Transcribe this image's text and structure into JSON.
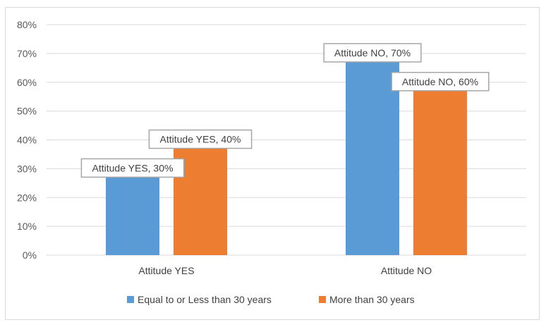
{
  "chart_data": {
    "type": "bar",
    "title": "",
    "xlabel": "",
    "ylabel": "",
    "categories": [
      "Attitude YES",
      "Attitude NO"
    ],
    "series": [
      {
        "name": "Equal to or Less than 30 years",
        "color": "#5b9bd5",
        "values": [
          30,
          70
        ],
        "labels": [
          "Attitude YES, 30%",
          "Attitude NO, 70%"
        ]
      },
      {
        "name": "More than 30 years",
        "color": "#ed7d31",
        "values": [
          40,
          60
        ],
        "labels": [
          "Attitude YES, 40%",
          "Attitude NO, 60%"
        ]
      }
    ],
    "yticks": [
      "0%",
      "10%",
      "20%",
      "30%",
      "40%",
      "50%",
      "60%",
      "70%",
      "80%"
    ],
    "ylim": [
      0,
      80
    ],
    "grid": true,
    "legend_position": "bottom"
  }
}
